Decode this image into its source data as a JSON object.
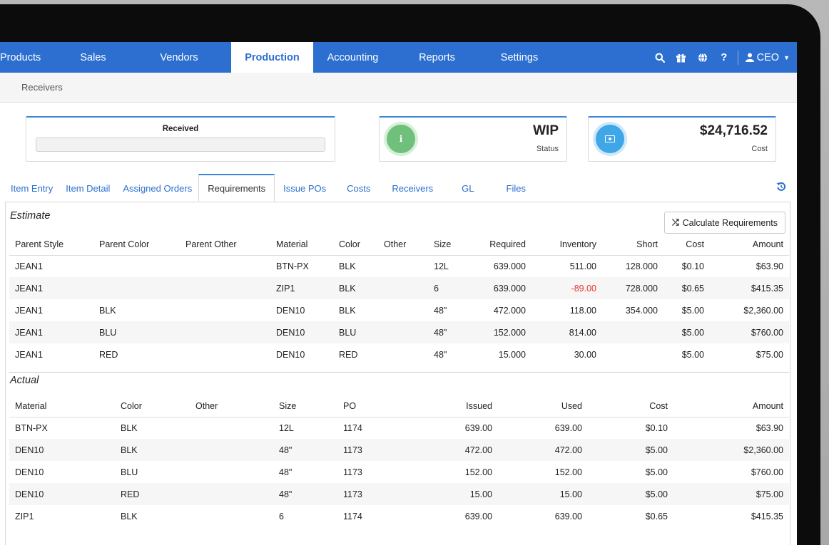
{
  "nav": {
    "items": [
      "Products",
      "Sales",
      "Vendors",
      "Production",
      "Accounting",
      "Reports",
      "Settings"
    ],
    "active": "Production",
    "user": "CEO"
  },
  "subbar": {
    "link": "Receivers"
  },
  "cards": {
    "received": {
      "title": "Received"
    },
    "wip": {
      "value": "WIP",
      "label": "Status"
    },
    "cost": {
      "value": "$24,716.52",
      "label": "Cost"
    }
  },
  "tabs": [
    "Item Entry",
    "Item Detail",
    "Assigned Orders",
    "Requirements",
    "Issue POs",
    "Costs",
    "Receivers",
    "GL",
    "Files"
  ],
  "active_tab": "Requirements",
  "estimate": {
    "title": "Estimate",
    "button": "Calculate Requirements",
    "columns": [
      "Parent Style",
      "Parent Color",
      "Parent Other",
      "Material",
      "Color",
      "Other",
      "Size",
      "Required",
      "Inventory",
      "Short",
      "Cost",
      "Amount"
    ],
    "rows": [
      [
        "JEAN1",
        "",
        "",
        "BTN-PX",
        "BLK",
        "",
        "12L",
        "639.000",
        "511.00",
        "128.000",
        "$0.10",
        "$63.90"
      ],
      [
        "JEAN1",
        "",
        "",
        "ZIP1",
        "BLK",
        "",
        "6",
        "639.000",
        "-89.00",
        "728.000",
        "$0.65",
        "$415.35"
      ],
      [
        "JEAN1",
        "BLK",
        "",
        "DEN10",
        "BLK",
        "",
        "48\"",
        "472.000",
        "118.00",
        "354.000",
        "$5.00",
        "$2,360.00"
      ],
      [
        "JEAN1",
        "BLU",
        "",
        "DEN10",
        "BLU",
        "",
        "48\"",
        "152.000",
        "814.00",
        "",
        "$5.00",
        "$760.00"
      ],
      [
        "JEAN1",
        "RED",
        "",
        "DEN10",
        "RED",
        "",
        "48\"",
        "15.000",
        "30.00",
        "",
        "$5.00",
        "$75.00"
      ]
    ]
  },
  "actual": {
    "title": "Actual",
    "columns": [
      "Material",
      "Color",
      "Other",
      "Size",
      "PO",
      "Issued",
      "Used",
      "Cost",
      "Amount"
    ],
    "rows": [
      [
        "BTN-PX",
        "BLK",
        "",
        "12L",
        "1174",
        "639.00",
        "639.00",
        "$0.10",
        "$63.90"
      ],
      [
        "DEN10",
        "BLK",
        "",
        "48\"",
        "1173",
        "472.00",
        "472.00",
        "$5.00",
        "$2,360.00"
      ],
      [
        "DEN10",
        "BLU",
        "",
        "48\"",
        "1173",
        "152.00",
        "152.00",
        "$5.00",
        "$760.00"
      ],
      [
        "DEN10",
        "RED",
        "",
        "48\"",
        "1173",
        "15.00",
        "15.00",
        "$5.00",
        "$75.00"
      ],
      [
        "ZIP1",
        "BLK",
        "",
        "6",
        "1174",
        "639.00",
        "639.00",
        "$0.65",
        "$415.35"
      ]
    ]
  }
}
